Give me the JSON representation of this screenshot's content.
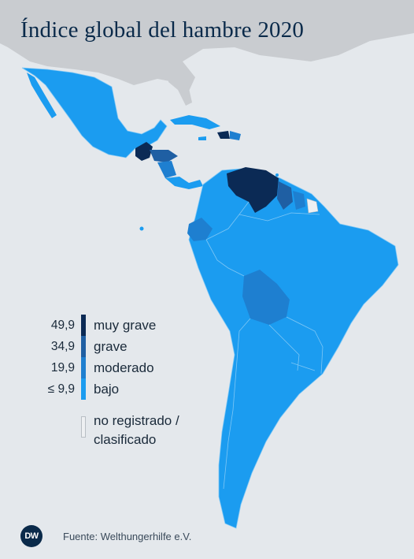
{
  "title": "Índice global del hambre 2020",
  "colors": {
    "muy_grave": "#0b2a55",
    "grave": "#1f5fa3",
    "moderado": "#1e7fd0",
    "bajo": "#1b9cf0",
    "no_registrado": "#eef0f2",
    "ocean": "#e4e8ec",
    "non_region_land": "#c9ccd0",
    "border": "#7fc7f5"
  },
  "legend": {
    "items": [
      {
        "value": "49,9",
        "label": "muy grave",
        "color": "#0b2a55"
      },
      {
        "value": "34,9",
        "label": "grave",
        "color": "#1f5fa3"
      },
      {
        "value": "19,9",
        "label": "moderado",
        "color": "#1e7fd0"
      },
      {
        "value": "≤ 9,9",
        "label": "bajo",
        "color": "#1b9cf0"
      }
    ],
    "not_registered_line1": "no registrado /",
    "not_registered_line2": "clasificado"
  },
  "footer": {
    "logo_text": "DW",
    "source": "Fuente: Welthungerhilfe e.V."
  }
}
